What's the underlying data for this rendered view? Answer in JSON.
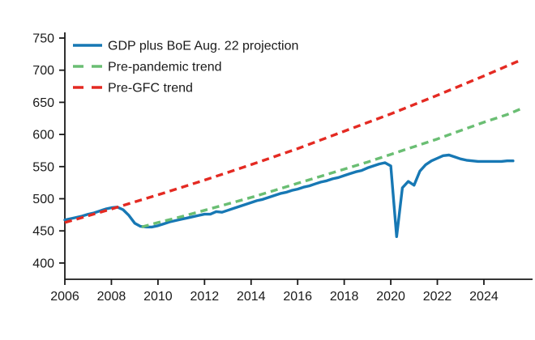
{
  "colors": {
    "gdp": "#1778b4",
    "pre_pandemic": "#6abe73",
    "pre_gfc": "#e42a22",
    "axis": "#1a1a1a",
    "background": "#ffffff"
  },
  "legend": [
    {
      "label": "GDP plus BoE Aug. 22 projection",
      "series": "gdp",
      "style": "solid"
    },
    {
      "label": "Pre-pandemic trend",
      "series": "pre_pandemic",
      "style": "dashed"
    },
    {
      "label": "Pre-GFC trend",
      "series": "pre_gfc",
      "style": "dashed"
    }
  ],
  "chart_data": {
    "type": "line",
    "title": "",
    "xlabel": "",
    "ylabel": "",
    "xlim": [
      2006,
      2026.1
    ],
    "ylim": [
      375,
      760
    ],
    "x_ticks": [
      2006,
      2008,
      2010,
      2012,
      2014,
      2016,
      2018,
      2020,
      2022,
      2024
    ],
    "y_ticks": [
      400,
      450,
      500,
      550,
      600,
      650,
      700,
      750
    ],
    "grid": false,
    "legend_position": "top-left",
    "series": [
      {
        "id": "gdp",
        "name": "GDP plus BoE Aug. 22 projection",
        "style": "solid",
        "x": [
          2006,
          2006.25,
          2006.5,
          2006.75,
          2007,
          2007.25,
          2007.5,
          2007.75,
          2008,
          2008.25,
          2008.5,
          2008.75,
          2009,
          2009.25,
          2009.5,
          2009.75,
          2010,
          2010.25,
          2010.5,
          2010.75,
          2011,
          2011.25,
          2011.5,
          2011.75,
          2012,
          2012.25,
          2012.5,
          2012.75,
          2013,
          2013.25,
          2013.5,
          2013.75,
          2014,
          2014.25,
          2014.5,
          2014.75,
          2015,
          2015.25,
          2015.5,
          2015.75,
          2016,
          2016.25,
          2016.5,
          2016.75,
          2017,
          2017.25,
          2017.5,
          2017.75,
          2018,
          2018.25,
          2018.5,
          2018.75,
          2019,
          2019.25,
          2019.5,
          2019.75,
          2020,
          2020.25,
          2020.5,
          2020.75,
          2021,
          2021.25,
          2021.5,
          2021.75,
          2022,
          2022.25,
          2022.5,
          2022.75,
          2023,
          2023.25,
          2023.5,
          2023.75,
          2024,
          2024.25,
          2024.5,
          2024.75,
          2025,
          2025.25
        ],
        "y": [
          467,
          469,
          471,
          473,
          476,
          478,
          481,
          484,
          486,
          487,
          483,
          474,
          462,
          457,
          456,
          456,
          458,
          461,
          464,
          466,
          468,
          470,
          472,
          474,
          476,
          476,
          480,
          479,
          482,
          485,
          488,
          491,
          494,
          497,
          499,
          502,
          505,
          508,
          510,
          513,
          515,
          518,
          520,
          523,
          526,
          528,
          531,
          533,
          536,
          539,
          542,
          544,
          548,
          551,
          554,
          556,
          551,
          441,
          517,
          527,
          521,
          543,
          553,
          559,
          563,
          567,
          568,
          565,
          562,
          560,
          559,
          558,
          558,
          558,
          558,
          558,
          559,
          559
        ]
      },
      {
        "id": "pre_pandemic",
        "name": "Pre-pandemic trend",
        "style": "dashed",
        "x": [
          2009.3,
          2010,
          2011,
          2012,
          2013,
          2014,
          2015,
          2016,
          2017,
          2018,
          2019,
          2020,
          2021,
          2022,
          2023,
          2024,
          2025,
          2025.6
        ],
        "y": [
          456,
          463,
          472,
          482,
          492,
          502,
          513,
          524,
          535,
          546,
          557,
          569,
          581,
          593,
          606,
          619,
          631,
          640
        ]
      },
      {
        "id": "pre_gfc",
        "name": "Pre-GFC trend",
        "style": "dashed",
        "x": [
          2006,
          2008,
          2010,
          2012,
          2014,
          2016,
          2018,
          2020,
          2022,
          2024,
          2025.6
        ],
        "y": [
          463,
          484,
          506,
          529,
          553,
          578,
          605,
          632,
          661,
          691,
          716
        ]
      }
    ]
  }
}
